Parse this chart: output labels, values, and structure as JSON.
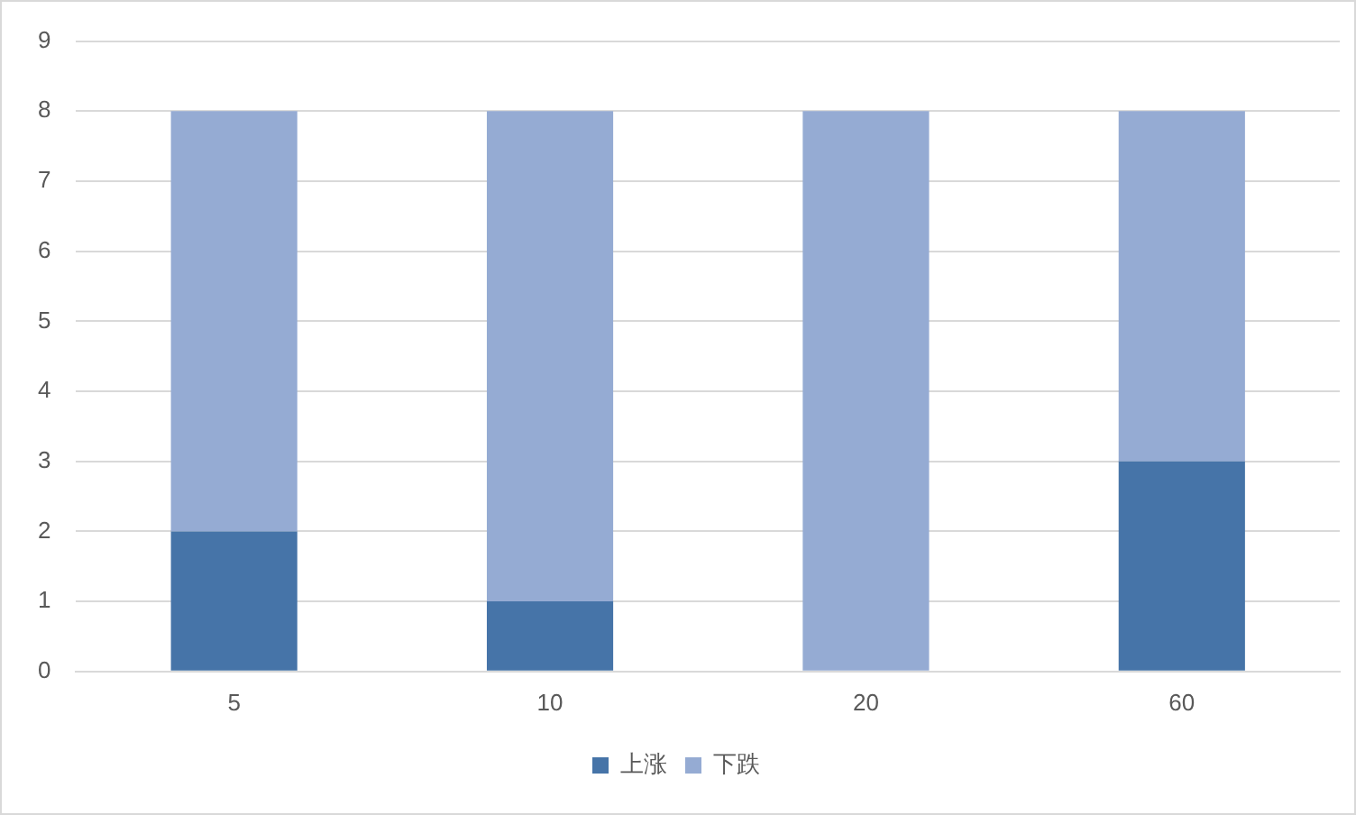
{
  "chart_data": {
    "type": "bar",
    "stacked": true,
    "categories": [
      "5",
      "10",
      "20",
      "60"
    ],
    "series": [
      {
        "name": "上涨",
        "color": "#4674a8",
        "values": [
          2,
          1,
          0,
          3
        ]
      },
      {
        "name": "下跌",
        "color": "#95abd3",
        "values": [
          6,
          7,
          8,
          5
        ]
      }
    ],
    "ylim": [
      0,
      9
    ],
    "yticks": [
      0,
      1,
      2,
      3,
      4,
      5,
      6,
      7,
      8,
      9
    ],
    "grid": "y",
    "legend": "bottom"
  }
}
